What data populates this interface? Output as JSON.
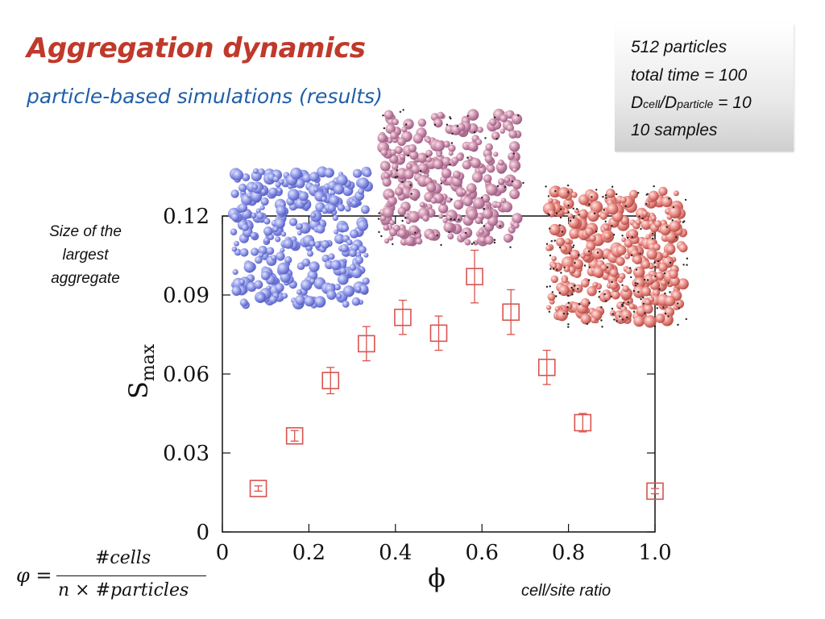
{
  "slide": {
    "title": "Aggregation dynamics",
    "subtitle": "particle-based simulations (results)"
  },
  "info_box": {
    "line1": "512 particles",
    "line2": "total time = 100",
    "line3_prefix": "D",
    "line3_sub1": "cell",
    "line3_mid": "/D",
    "line3_sub2": "particle",
    "line3_suffix": " = 10",
    "line4": "10 samples"
  },
  "annotations": {
    "size_label": "Size of the largest aggregate",
    "ratio_label": "cell/site ratio"
  },
  "formula": {
    "lhs": "φ =",
    "numerator": "#cells",
    "denominator": "n × #particles"
  },
  "chart_data": {
    "type": "scatter",
    "xlabel": "ϕ",
    "ylabel": "S",
    "ylabel_sub": "max",
    "xlim": [
      0,
      1.0
    ],
    "ylim": [
      0,
      0.12
    ],
    "xticks": [
      "0",
      "0.2",
      "0.4",
      "0.6",
      "0.8",
      "1.0"
    ],
    "yticks": [
      "0",
      "0.03",
      "0.06",
      "0.09",
      "0.12"
    ],
    "marker": "open-square",
    "color": "#d9534f",
    "x": [
      0.083,
      0.167,
      0.25,
      0.333,
      0.417,
      0.5,
      0.583,
      0.667,
      0.75,
      0.833,
      1.0
    ],
    "y": [
      0.0165,
      0.0365,
      0.0575,
      0.0715,
      0.0815,
      0.0755,
      0.097,
      0.0835,
      0.0625,
      0.0415,
      0.0155
    ],
    "err": [
      0.001,
      0.002,
      0.005,
      0.0065,
      0.0065,
      0.0065,
      0.01,
      0.0085,
      0.0065,
      0.0035,
      0.001
    ]
  },
  "colors": {
    "title": "#c0392b",
    "subtitle": "#1f5fa8",
    "blue_particles": "#8a93e6",
    "red_particles": "#e8847e"
  }
}
